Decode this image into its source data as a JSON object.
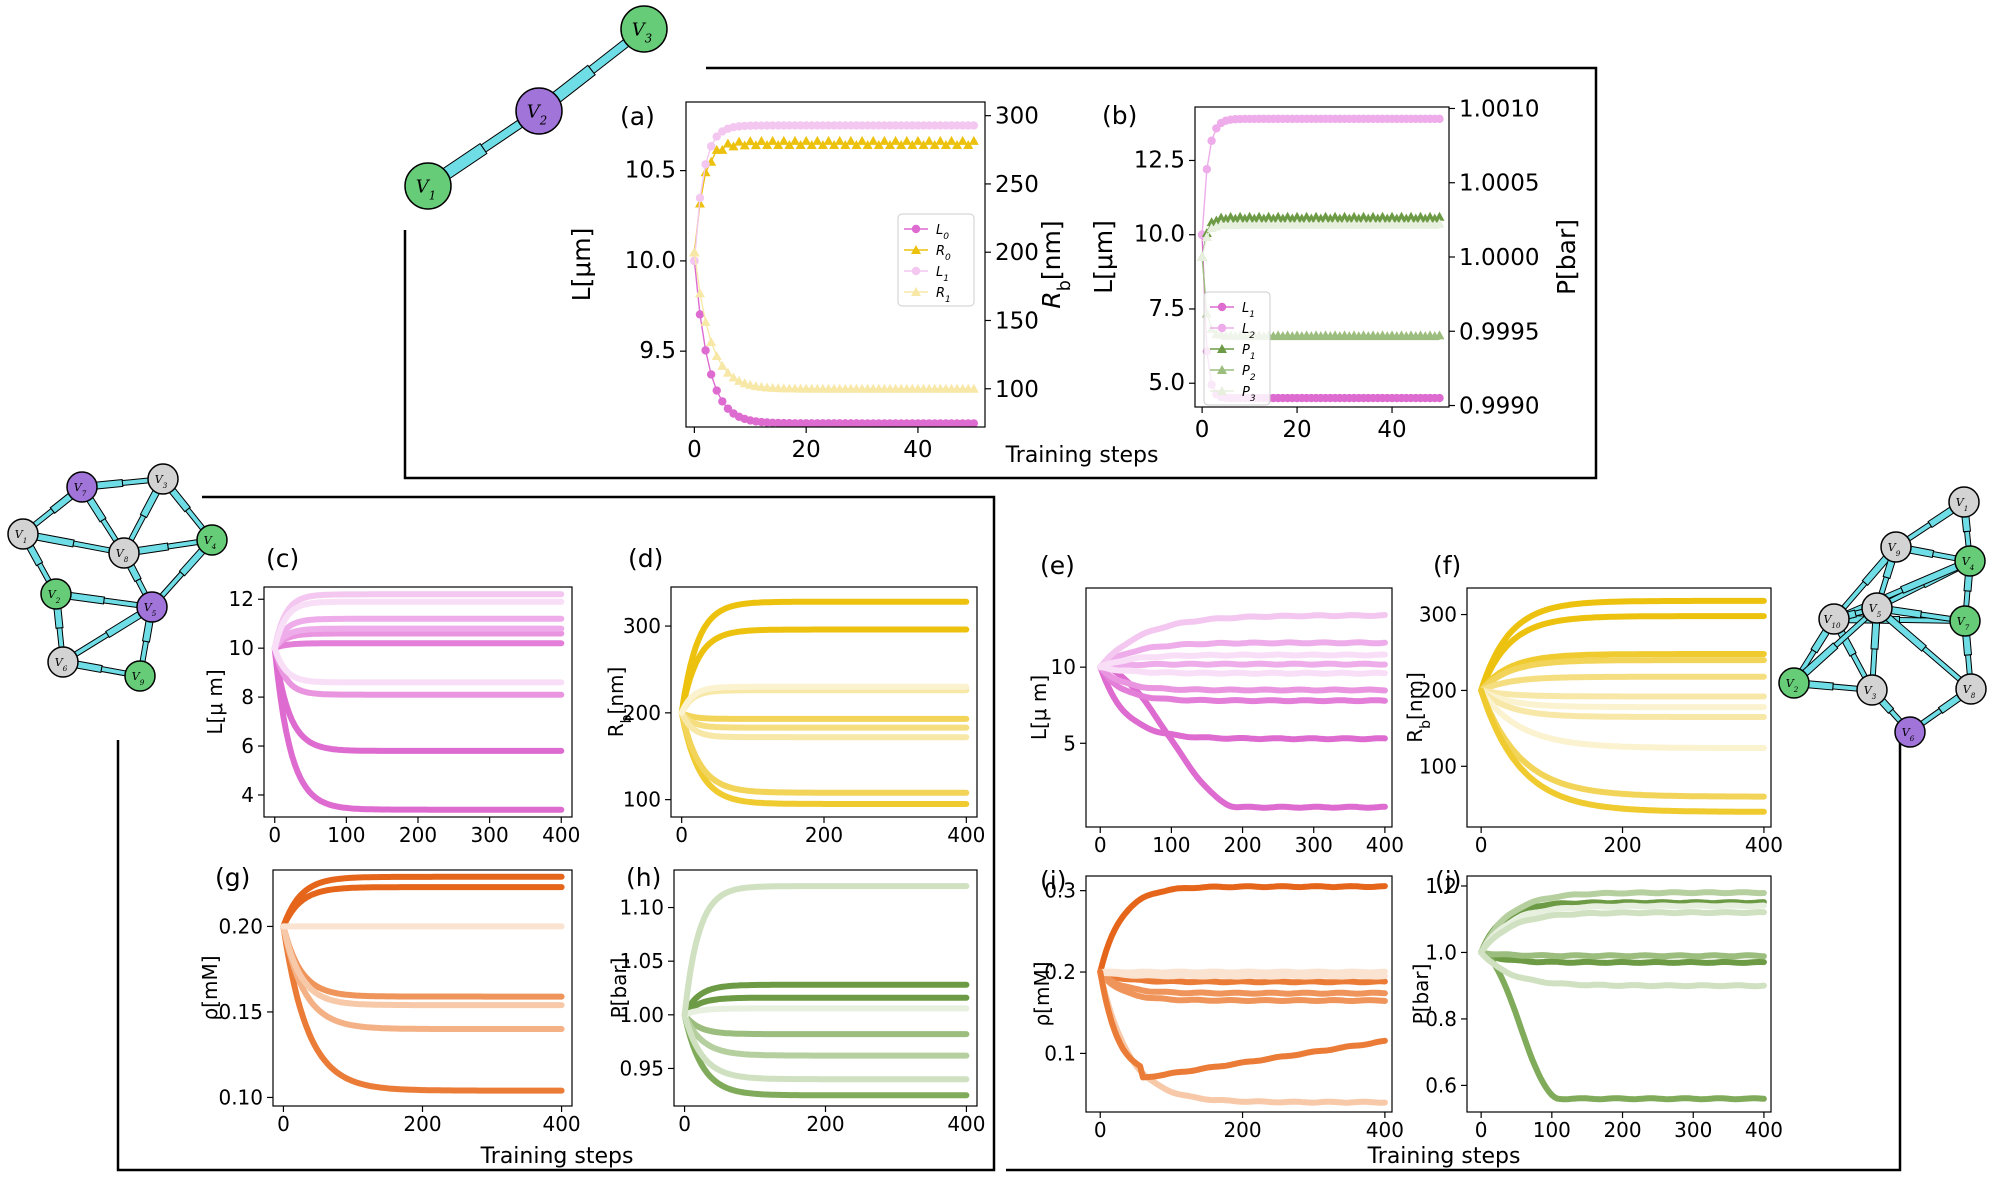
{
  "colors": {
    "magenta": [
      "#dd6bd0",
      "#e37fd8",
      "#e995e0",
      "#eeadea",
      "#f3c7f0",
      "#f8def6"
    ],
    "gold": [
      "#ecc20f",
      "#f0cb30",
      "#f2d459",
      "#f5de80",
      "#f8e8a8",
      "#fbf2cf"
    ],
    "orange": [
      "#e5651b",
      "#ea7c37",
      "#ef955b",
      "#f4b185",
      "#f7c9a9",
      "#fbe3d2"
    ],
    "green": [
      "#6d9b45",
      "#80ab5a",
      "#9bbd7d",
      "#b5cf9f",
      "#cfe1c0",
      "#e7f0df"
    ],
    "node_green": "#66cc77",
    "node_purple": "#a074d8",
    "node_gray": "#d3d3d3",
    "edge_cyan": "#6fdde6"
  },
  "xlabel_common": "Training steps",
  "graphs": {
    "top": {
      "nodes": [
        {
          "id": "V1",
          "label": "V",
          "sub": "1",
          "color": "green"
        },
        {
          "id": "V2",
          "label": "V",
          "sub": "2",
          "color": "purple"
        },
        {
          "id": "V3",
          "label": "V",
          "sub": "3",
          "color": "green"
        }
      ],
      "edges": [
        [
          "V1",
          "V2"
        ],
        [
          "V2",
          "V3"
        ]
      ]
    },
    "left": {
      "nodes": [
        {
          "id": "V1",
          "label": "V",
          "sub": "1",
          "color": "gray"
        },
        {
          "id": "V2",
          "label": "V",
          "sub": "2",
          "color": "green"
        },
        {
          "id": "V3",
          "label": "V",
          "sub": "3",
          "color": "gray"
        },
        {
          "id": "V4",
          "label": "V",
          "sub": "4",
          "color": "green"
        },
        {
          "id": "V5",
          "label": "V",
          "sub": "5",
          "color": "purple"
        },
        {
          "id": "V6",
          "label": "V",
          "sub": "6",
          "color": "gray"
        },
        {
          "id": "V7",
          "label": "V",
          "sub": "7",
          "color": "purple"
        },
        {
          "id": "V8",
          "label": "V",
          "sub": "8",
          "color": "gray"
        },
        {
          "id": "V9",
          "label": "V",
          "sub": "9",
          "color": "green"
        }
      ],
      "edges": [
        [
          "V7",
          "V3"
        ],
        [
          "V7",
          "V1"
        ],
        [
          "V7",
          "V8"
        ],
        [
          "V3",
          "V8"
        ],
        [
          "V3",
          "V4"
        ],
        [
          "V1",
          "V8"
        ],
        [
          "V1",
          "V2"
        ],
        [
          "V8",
          "V4"
        ],
        [
          "V8",
          "V5"
        ],
        [
          "V4",
          "V5"
        ],
        [
          "V2",
          "V5"
        ],
        [
          "V2",
          "V6"
        ],
        [
          "V6",
          "V9"
        ],
        [
          "V5",
          "V9"
        ],
        [
          "V5",
          "V6"
        ]
      ]
    },
    "right": {
      "nodes": [
        {
          "id": "V1",
          "label": "V",
          "sub": "1",
          "color": "gray"
        },
        {
          "id": "V2",
          "label": "V",
          "sub": "2",
          "color": "green"
        },
        {
          "id": "V3",
          "label": "V",
          "sub": "3",
          "color": "gray"
        },
        {
          "id": "V4",
          "label": "V",
          "sub": "4",
          "color": "green"
        },
        {
          "id": "V5",
          "label": "V",
          "sub": "5",
          "color": "gray"
        },
        {
          "id": "V6",
          "label": "V",
          "sub": "6",
          "color": "purple"
        },
        {
          "id": "V7",
          "label": "V",
          "sub": "7",
          "color": "green"
        },
        {
          "id": "V8",
          "label": "V",
          "sub": "8",
          "color": "gray"
        },
        {
          "id": "V9",
          "label": "V",
          "sub": "9",
          "color": "gray"
        },
        {
          "id": "V10",
          "label": "V",
          "sub": "10",
          "color": "gray"
        }
      ],
      "edges": [
        [
          "V1",
          "V9"
        ],
        [
          "V1",
          "V4"
        ],
        [
          "V9",
          "V4"
        ],
        [
          "V9",
          "V10"
        ],
        [
          "V9",
          "V5"
        ],
        [
          "V4",
          "V7"
        ],
        [
          "V4",
          "V5"
        ],
        [
          "V4",
          "V10"
        ],
        [
          "V10",
          "V7"
        ],
        [
          "V10",
          "V5"
        ],
        [
          "V10",
          "V2"
        ],
        [
          "V10",
          "V3"
        ],
        [
          "V5",
          "V3"
        ],
        [
          "V5",
          "V8"
        ],
        [
          "V5",
          "V7"
        ],
        [
          "V7",
          "V8"
        ],
        [
          "V2",
          "V3"
        ],
        [
          "V3",
          "V6"
        ],
        [
          "V8",
          "V6"
        ],
        [
          "V2",
          "V5"
        ]
      ]
    }
  },
  "chart_data": [
    {
      "id": "a",
      "panel_label": "(a)",
      "type": "line",
      "xlabel": "Training steps",
      "ylabel": "L[μm]",
      "ylabel_right": "R_b[nm]",
      "xlim": [
        -1.5,
        52
      ],
      "ylim": [
        9.08,
        10.88
      ],
      "ylim_right": [
        72,
        310
      ],
      "xticks": [
        0,
        20,
        40
      ],
      "yticks": [
        9.5,
        10.0,
        10.5
      ],
      "yticks_right": [
        100,
        150,
        200,
        250,
        300
      ],
      "steps": 50,
      "series": [
        {
          "name": "L_0",
          "axis": "left",
          "marker": "circle",
          "color": "#dd6bd0",
          "start": 10.0,
          "end": 9.1,
          "tau": 2.5
        },
        {
          "name": "R_0",
          "axis": "right",
          "marker": "triangle",
          "color": "#ecc20f",
          "start": 200,
          "end": 280,
          "tau": 1.6,
          "zigzag": 3
        },
        {
          "name": "L_1",
          "axis": "left",
          "marker": "circle",
          "color": "#f3c7f0",
          "start": 10.0,
          "end": 10.75,
          "tau": 1.6
        },
        {
          "name": "R_1",
          "axis": "right",
          "marker": "triangle",
          "color": "#f8e8a8",
          "start": 200,
          "end": 100,
          "tau": 2.8
        }
      ],
      "legend": [
        "L_0",
        "R_0",
        "L_1",
        "R_1"
      ]
    },
    {
      "id": "b",
      "panel_label": "(b)",
      "type": "line",
      "xlabel": "Training steps",
      "ylabel": "L[μm]",
      "ylabel_right": "P[bar]",
      "xlim": [
        -1.5,
        52
      ],
      "ylim": [
        4.2,
        14.3
      ],
      "ylim_right": [
        0.99899,
        1.00101
      ],
      "xticks": [
        0,
        20,
        40
      ],
      "yticks": [
        5.0,
        7.5,
        10.0,
        12.5
      ],
      "yticks_right": [
        0.999,
        0.9995,
        1.0,
        1.0005,
        1.001
      ],
      "steps": 50,
      "series": [
        {
          "name": "L_1",
          "axis": "left",
          "marker": "circle",
          "color": "#dd6bd0",
          "start": 10.0,
          "end": 4.5,
          "tau": 0.8
        },
        {
          "name": "L_2",
          "axis": "left",
          "marker": "circle",
          "color": "#eeadea",
          "start": 10.0,
          "end": 13.9,
          "tau": 1.2
        },
        {
          "name": "P_1",
          "axis": "right",
          "marker": "triangle",
          "color": "#6d9b45",
          "start": 1.0,
          "end": 1.000265,
          "tau": 1.0,
          "zigzag": 1.2e-05
        },
        {
          "name": "P_2",
          "axis": "right",
          "marker": "triangle",
          "color": "#9bbd7d",
          "start": 1.0,
          "end": 0.99947,
          "tau": 0.8,
          "zigzag": 5e-06
        },
        {
          "name": "P_3",
          "axis": "right",
          "marker": "triangle",
          "color": "#e7f0df",
          "start": 1.0,
          "end": 1.00022,
          "tau": 1.0,
          "zigzag": 8e-06
        }
      ],
      "legend": [
        "L_1",
        "L_2",
        "P_1",
        "P_2",
        "P_3"
      ]
    },
    {
      "id": "c",
      "panel_label": "(c)",
      "type": "line",
      "ylabel": "L[μ m]",
      "xlim": [
        -15,
        415
      ],
      "ylim": [
        3.1,
        12.5
      ],
      "xticks": [
        0,
        100,
        200,
        300,
        400
      ],
      "yticks": [
        4,
        6,
        8,
        10,
        12
      ],
      "palette": "magenta",
      "series": [
        {
          "start": 10,
          "end": 3.4,
          "tau": 22,
          "shade": 0
        },
        {
          "start": 10,
          "end": 5.8,
          "tau": 20,
          "shade": 0
        },
        {
          "start": 10,
          "end": 10.2,
          "tau": 15,
          "shade": 1
        },
        {
          "start": 10,
          "end": 8.1,
          "tau": 15,
          "shade": 2
        },
        {
          "start": 10,
          "end": 10.6,
          "tau": 15,
          "shade": 2
        },
        {
          "start": 10,
          "end": 11.2,
          "tau": 15,
          "shade": 3
        },
        {
          "start": 10,
          "end": 10.8,
          "tau": 15,
          "shade": 3
        },
        {
          "start": 10,
          "end": 12.2,
          "tau": 15,
          "shade": 4
        },
        {
          "start": 10,
          "end": 11.9,
          "tau": 15,
          "shade": 5
        },
        {
          "start": 10,
          "end": 8.6,
          "tau": 15,
          "shade": 5
        }
      ]
    },
    {
      "id": "d",
      "panel_label": "(d)",
      "type": "line",
      "ylabel": "R_b[nm]",
      "xlim": [
        -15,
        415
      ],
      "ylim": [
        80,
        345
      ],
      "xticks": [
        0,
        200,
        400
      ],
      "yticks": [
        100,
        200,
        300
      ],
      "palette": "gold",
      "series": [
        {
          "start": 200,
          "end": 328,
          "tau": 22,
          "shade": 0
        },
        {
          "start": 200,
          "end": 296,
          "tau": 22,
          "shade": 0
        },
        {
          "start": 200,
          "end": 95,
          "tau": 25,
          "shade": 1
        },
        {
          "start": 200,
          "end": 108,
          "tau": 25,
          "shade": 2
        },
        {
          "start": 200,
          "end": 193,
          "tau": 15,
          "shade": 2
        },
        {
          "start": 200,
          "end": 183,
          "tau": 15,
          "shade": 3
        },
        {
          "start": 200,
          "end": 172,
          "tau": 15,
          "shade": 4
        },
        {
          "start": 200,
          "end": 226,
          "tau": 15,
          "shade": 4
        },
        {
          "start": 200,
          "end": 230,
          "tau": 15,
          "shade": 5
        }
      ]
    },
    {
      "id": "e",
      "panel_label": "(e)",
      "type": "line",
      "ylabel": "L[μ m]",
      "xlim": [
        -20,
        410
      ],
      "ylim": [
        -0.5,
        15.2
      ],
      "xticks": [
        0,
        100,
        200,
        300,
        400
      ],
      "yticks": [
        5,
        10
      ],
      "palette": "magenta",
      "series": [
        {
          "start": 10,
          "end": 0.8,
          "tau": 0,
          "linear_until": 195,
          "shade": 0
        },
        {
          "start": 10,
          "end": 5.3,
          "tau": 35,
          "shade": 0
        },
        {
          "start": 10,
          "end": 7.8,
          "tau": 30,
          "shade": 1
        },
        {
          "start": 10,
          "end": 8.5,
          "tau": 30,
          "shade": 2
        },
        {
          "start": 10,
          "end": 10.2,
          "tau": 30,
          "shade": 3
        },
        {
          "start": 10,
          "end": 11.6,
          "tau": 45,
          "shade": 3
        },
        {
          "start": 10,
          "end": 13.4,
          "tau": 60,
          "shade": 4
        },
        {
          "start": 10,
          "end": 10.8,
          "tau": 40,
          "shade": 5
        },
        {
          "start": 10,
          "end": 9.6,
          "tau": 40,
          "shade": 5
        }
      ]
    },
    {
      "id": "f",
      "panel_label": "(f)",
      "type": "line",
      "ylabel": "R_b[nm]",
      "xlim": [
        -20,
        410
      ],
      "ylim": [
        20,
        335
      ],
      "xticks": [
        0,
        200,
        400
      ],
      "yticks": [
        100,
        200,
        300
      ],
      "palette": "gold",
      "series": [
        {
          "start": 200,
          "end": 318,
          "tau": 40,
          "shade": 0
        },
        {
          "start": 200,
          "end": 298,
          "tau": 40,
          "shade": 0
        },
        {
          "start": 200,
          "end": 248,
          "tau": 40,
          "shade": 1
        },
        {
          "start": 200,
          "end": 240,
          "tau": 40,
          "shade": 2
        },
        {
          "start": 200,
          "end": 218,
          "tau": 40,
          "shade": 3
        },
        {
          "start": 200,
          "end": 192,
          "tau": 40,
          "shade": 4
        },
        {
          "start": 200,
          "end": 178,
          "tau": 40,
          "shade": 5
        },
        {
          "start": 200,
          "end": 165,
          "tau": 40,
          "shade": 4
        },
        {
          "start": 200,
          "end": 124,
          "tau": 55,
          "shade": 5
        },
        {
          "start": 200,
          "end": 60,
          "tau": 55,
          "shade": 2
        },
        {
          "start": 200,
          "end": 40,
          "tau": 55,
          "shade": 1
        }
      ]
    },
    {
      "id": "g",
      "panel_label": "(g)",
      "type": "line",
      "ylabel": "ρ[mM]",
      "xlabel": "Training steps",
      "xlim": [
        -15,
        415
      ],
      "ylim": [
        0.095,
        0.233
      ],
      "xticks": [
        0,
        200,
        400
      ],
      "yticks": [
        0.1,
        0.15,
        0.2
      ],
      "palette": "orange",
      "series": [
        {
          "start": 0.2,
          "end": 0.229,
          "tau": 25,
          "shade": 0
        },
        {
          "start": 0.2,
          "end": 0.223,
          "tau": 25,
          "shade": 0
        },
        {
          "start": 0.2,
          "end": 0.104,
          "tau": 35,
          "shade": 1
        },
        {
          "start": 0.2,
          "end": 0.159,
          "tau": 25,
          "shade": 2
        },
        {
          "start": 0.2,
          "end": 0.14,
          "tau": 30,
          "shade": 3
        },
        {
          "start": 0.2,
          "end": 0.154,
          "tau": 25,
          "shade": 4
        },
        {
          "start": 0.2,
          "end": 0.2,
          "tau": 20,
          "shade": 5
        }
      ]
    },
    {
      "id": "h",
      "panel_label": "(h)",
      "type": "line",
      "ylabel": "P[bar]",
      "xlim": [
        -15,
        415
      ],
      "ylim": [
        0.915,
        1.135
      ],
      "xticks": [
        0,
        200,
        400
      ],
      "yticks": [
        0.95,
        1.0,
        1.05,
        1.1
      ],
      "palette": "green",
      "series": [
        {
          "start": 1.0,
          "end": 1.028,
          "tau": 20,
          "shade": 0
        },
        {
          "start": 1.0,
          "end": 1.016,
          "tau": 20,
          "shade": 0
        },
        {
          "start": 1.0,
          "end": 0.925,
          "tau": 25,
          "shade": 1
        },
        {
          "start": 1.0,
          "end": 0.982,
          "tau": 20,
          "shade": 2
        },
        {
          "start": 1.0,
          "end": 0.962,
          "tau": 25,
          "shade": 3
        },
        {
          "start": 1.0,
          "end": 0.94,
          "tau": 25,
          "shade": 4
        },
        {
          "start": 1.0,
          "end": 1.006,
          "tau": 20,
          "shade": 5
        },
        {
          "start": 1.0,
          "end": 1.12,
          "tau": 20,
          "shade": 4
        }
      ]
    },
    {
      "id": "i",
      "panel_label": "(i)",
      "type": "line",
      "ylabel": "ρ[mM]",
      "xlim": [
        -20,
        410
      ],
      "ylim": [
        0.028,
        0.318
      ],
      "xticks": [
        0,
        200,
        400
      ],
      "yticks": [
        0.1,
        0.2,
        0.3
      ],
      "palette": "orange",
      "series": [
        {
          "start": 0.2,
          "end": 0.305,
          "tau": 30,
          "shade": 0
        },
        {
          "start": 0.2,
          "end": 0.188,
          "tau": 30,
          "shade": 1
        },
        {
          "start": 0.2,
          "end": 0.174,
          "tau": 30,
          "shade": 2
        },
        {
          "start": 0.2,
          "end": 0.165,
          "tau": 30,
          "shade": 2
        },
        {
          "start": 0.2,
          "end": 0.04,
          "tau": 40,
          "shade": 4
        },
        {
          "start": 0.2,
          "end": 0.195,
          "tau": 30,
          "shade": 5
        },
        {
          "start": 0.2,
          "end": 0.2,
          "tau": 30,
          "shade": 5
        },
        {
          "start": 0.2,
          "end": 0.115,
          "tau": 0,
          "dip": 0.07,
          "shade": 1
        }
      ]
    },
    {
      "id": "j",
      "panel_label": "(j)",
      "type": "line",
      "ylabel": "P[bar]",
      "xlabel": "Training steps",
      "xlim": [
        -20,
        410
      ],
      "ylim": [
        0.52,
        1.23
      ],
      "xticks": [
        0,
        100,
        200,
        300,
        400
      ],
      "yticks": [
        0.6,
        0.8,
        1.0,
        1.2
      ],
      "palette": "green",
      "series": [
        {
          "start": 1.0,
          "end": 1.15,
          "tau": 30,
          "shade": 0
        },
        {
          "start": 1.0,
          "end": 0.97,
          "tau": 30,
          "shade": 0
        },
        {
          "start": 1.0,
          "end": 0.56,
          "tau": 0,
          "linear_until": 110,
          "shade": 1
        },
        {
          "start": 1.0,
          "end": 0.99,
          "tau": 30,
          "shade": 2
        },
        {
          "start": 1.0,
          "end": 1.18,
          "tau": 40,
          "shade": 3
        },
        {
          "start": 1.0,
          "end": 0.9,
          "tau": 40,
          "shade": 4
        },
        {
          "start": 1.0,
          "end": 1.14,
          "tau": 40,
          "shade": 5
        },
        {
          "start": 1.0,
          "end": 1.12,
          "tau": 40,
          "shade": 4
        }
      ]
    }
  ]
}
